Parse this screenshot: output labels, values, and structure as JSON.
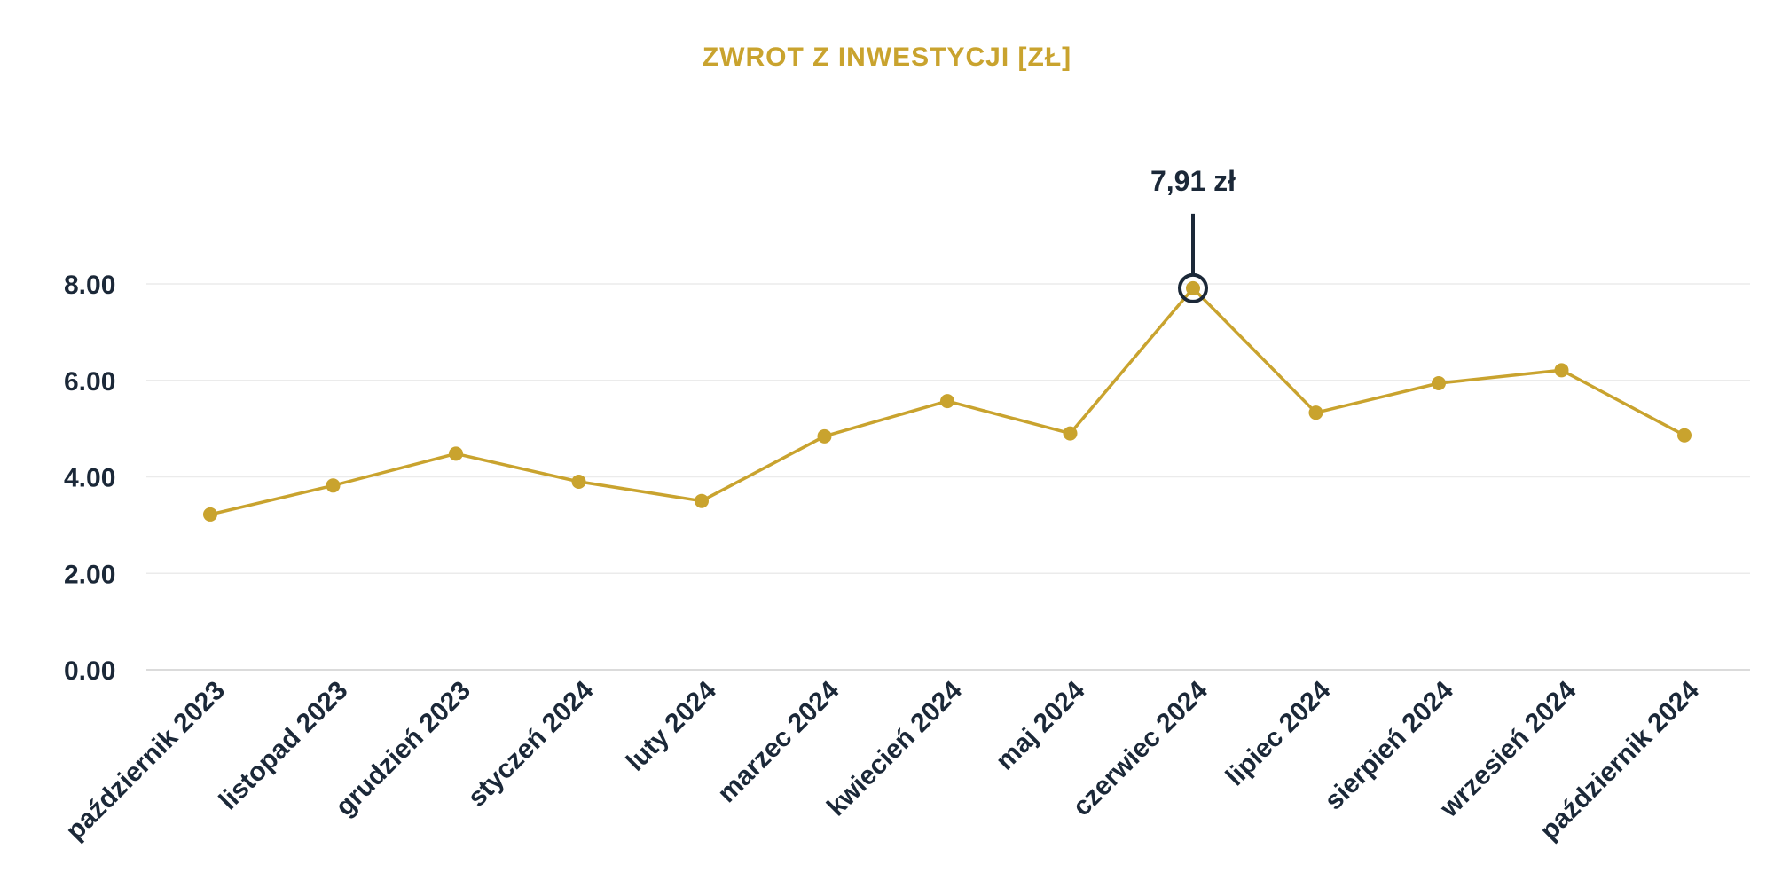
{
  "chart_data": {
    "type": "line",
    "title": "ZWROT Z INWESTYCJI [ZŁ]",
    "xlabel": "",
    "ylabel": "",
    "categories": [
      "październik 2023",
      "listopad 2023",
      "grudzień 2023",
      "styczeń 2024",
      "luty 2024",
      "marzec 2024",
      "kwiecień 2024",
      "maj 2024",
      "czerwiec 2024",
      "lipiec 2024",
      "sierpień 2024",
      "wrzesień 2024",
      "październik 2024"
    ],
    "series": [
      {
        "values": [
          3.22,
          3.82,
          4.48,
          3.9,
          3.5,
          4.84,
          5.57,
          4.9,
          7.91,
          5.33,
          5.94,
          6.21,
          4.86
        ]
      }
    ],
    "ylim": [
      0,
      8
    ],
    "yticks": [
      "0.00",
      "2.00",
      "4.00",
      "6.00",
      "8.00"
    ],
    "grid": true,
    "legend": "none",
    "annotation": {
      "index": 8,
      "text": "7,91 zł"
    },
    "colors": {
      "line": "#c9a32e",
      "text": "#1b2838",
      "title": "#c9a32e"
    }
  }
}
